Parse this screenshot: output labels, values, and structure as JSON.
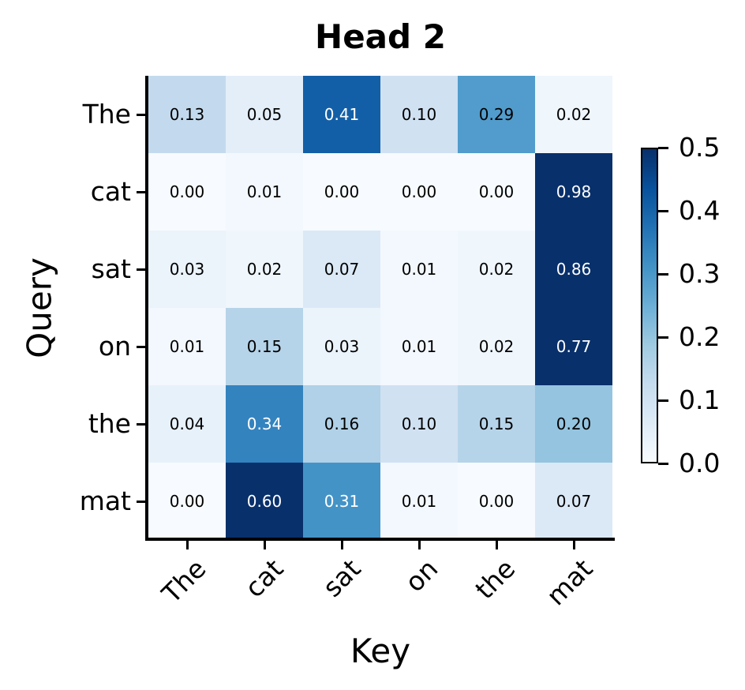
{
  "style": {
    "background": "#ffffff",
    "spine_color": "#000000",
    "text_color": "#000000",
    "annotation_color_dark": "#000000",
    "annotation_color_light": "#ffffff",
    "white_text_threshold": 0.3,
    "colormap_stops": [
      "#f7fbff",
      "#deebf7",
      "#c6dbef",
      "#9ecae1",
      "#6baed6",
      "#4292c6",
      "#2171b5",
      "#08519c",
      "#08306b"
    ]
  },
  "chart_data": {
    "type": "heatmap",
    "title": "Head 2",
    "xlabel": "Key",
    "ylabel": "Query",
    "x_categories": [
      "The",
      "cat",
      "sat",
      "on",
      "the",
      "mat"
    ],
    "y_categories": [
      "The",
      "cat",
      "sat",
      "on",
      "the",
      "mat"
    ],
    "values": [
      [
        0.13,
        0.05,
        0.41,
        0.1,
        0.29,
        0.02
      ],
      [
        0.0,
        0.01,
        0.0,
        0.0,
        0.0,
        0.98
      ],
      [
        0.03,
        0.02,
        0.07,
        0.01,
        0.02,
        0.86
      ],
      [
        0.01,
        0.15,
        0.03,
        0.01,
        0.02,
        0.77
      ],
      [
        0.04,
        0.34,
        0.16,
        0.1,
        0.15,
        0.2
      ],
      [
        0.0,
        0.6,
        0.31,
        0.01,
        0.0,
        0.07
      ]
    ],
    "vmin": 0.0,
    "vmax": 0.5,
    "colormap": "Blues",
    "colorbar_ticks": [
      0.0,
      0.1,
      0.2,
      0.3,
      0.4,
      0.5
    ],
    "annotation_decimals": 2,
    "colorbar_tick_decimals": 1,
    "legend_position": "right",
    "grid": false
  }
}
